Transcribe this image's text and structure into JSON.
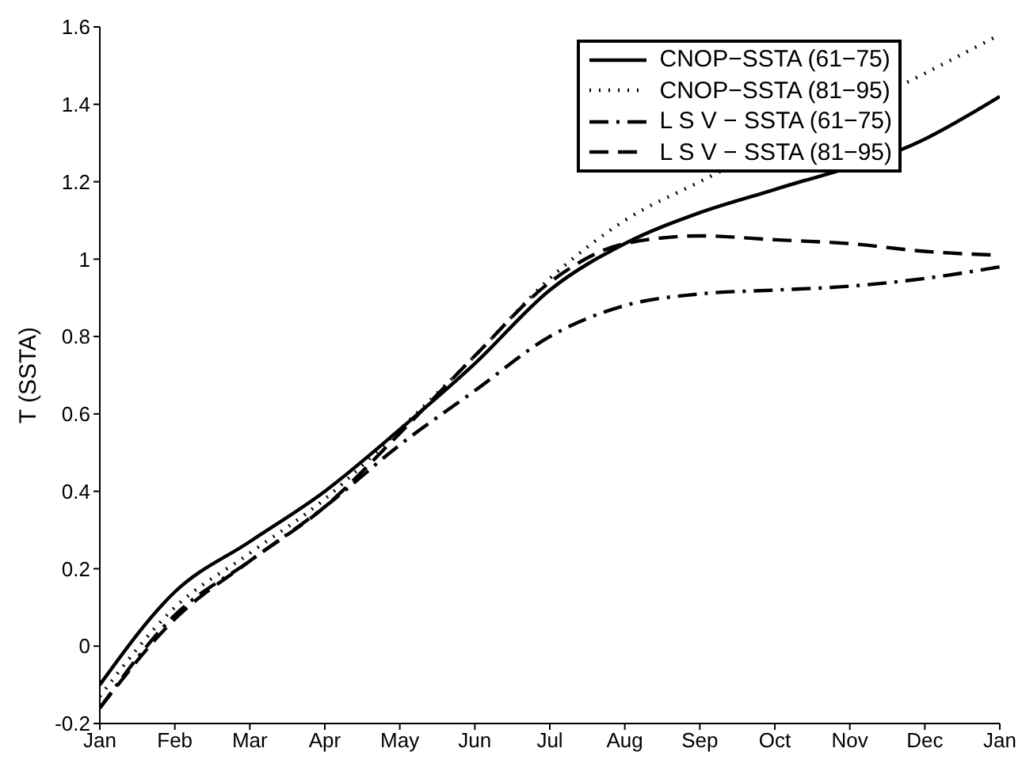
{
  "chart_data": {
    "type": "line",
    "ylabel": "T (SSTA)",
    "categories": [
      "Jan",
      "Feb",
      "Mar",
      "Apr",
      "May",
      "Jun",
      "Jul",
      "Aug",
      "Sep",
      "Oct",
      "Nov",
      "Dec",
      "Jan"
    ],
    "ylim": [
      -0.2,
      1.6
    ],
    "yticks": [
      -0.2,
      0,
      0.2,
      0.4,
      0.6,
      0.8,
      1,
      1.2,
      1.4,
      1.6
    ],
    "grid": false,
    "legend": "top right",
    "marker": "none",
    "series": [
      {
        "name": "CNOP−SSTA (61−75)",
        "color": "#000000",
        "line_style": "solid",
        "values": [
          -0.1,
          0.14,
          0.27,
          0.4,
          0.56,
          0.73,
          0.92,
          1.04,
          1.12,
          1.18,
          null,
          1.31,
          1.42
        ]
      },
      {
        "name": "CNOP−SSTA (81−95)",
        "color": "#000000",
        "line_style": "dotted",
        "values": [
          -0.13,
          0.1,
          0.24,
          0.38,
          0.56,
          0.75,
          0.95,
          1.1,
          1.2,
          null,
          null,
          1.48,
          1.58
        ]
      },
      {
        "name": "L S V − SSTA (61−75)",
        "color": "#000000",
        "line_style": "dashdot",
        "values": [
          -0.16,
          0.08,
          0.22,
          0.36,
          0.52,
          0.66,
          0.8,
          0.88,
          0.91,
          0.92,
          0.93,
          0.95,
          0.98
        ]
      },
      {
        "name": "L S V − SSTA (81−95)",
        "color": "#000000",
        "line_style": "dashed",
        "values": [
          -0.16,
          0.07,
          0.22,
          0.36,
          0.55,
          0.75,
          0.94,
          1.04,
          1.06,
          1.05,
          1.04,
          1.02,
          1.01
        ]
      }
    ]
  }
}
